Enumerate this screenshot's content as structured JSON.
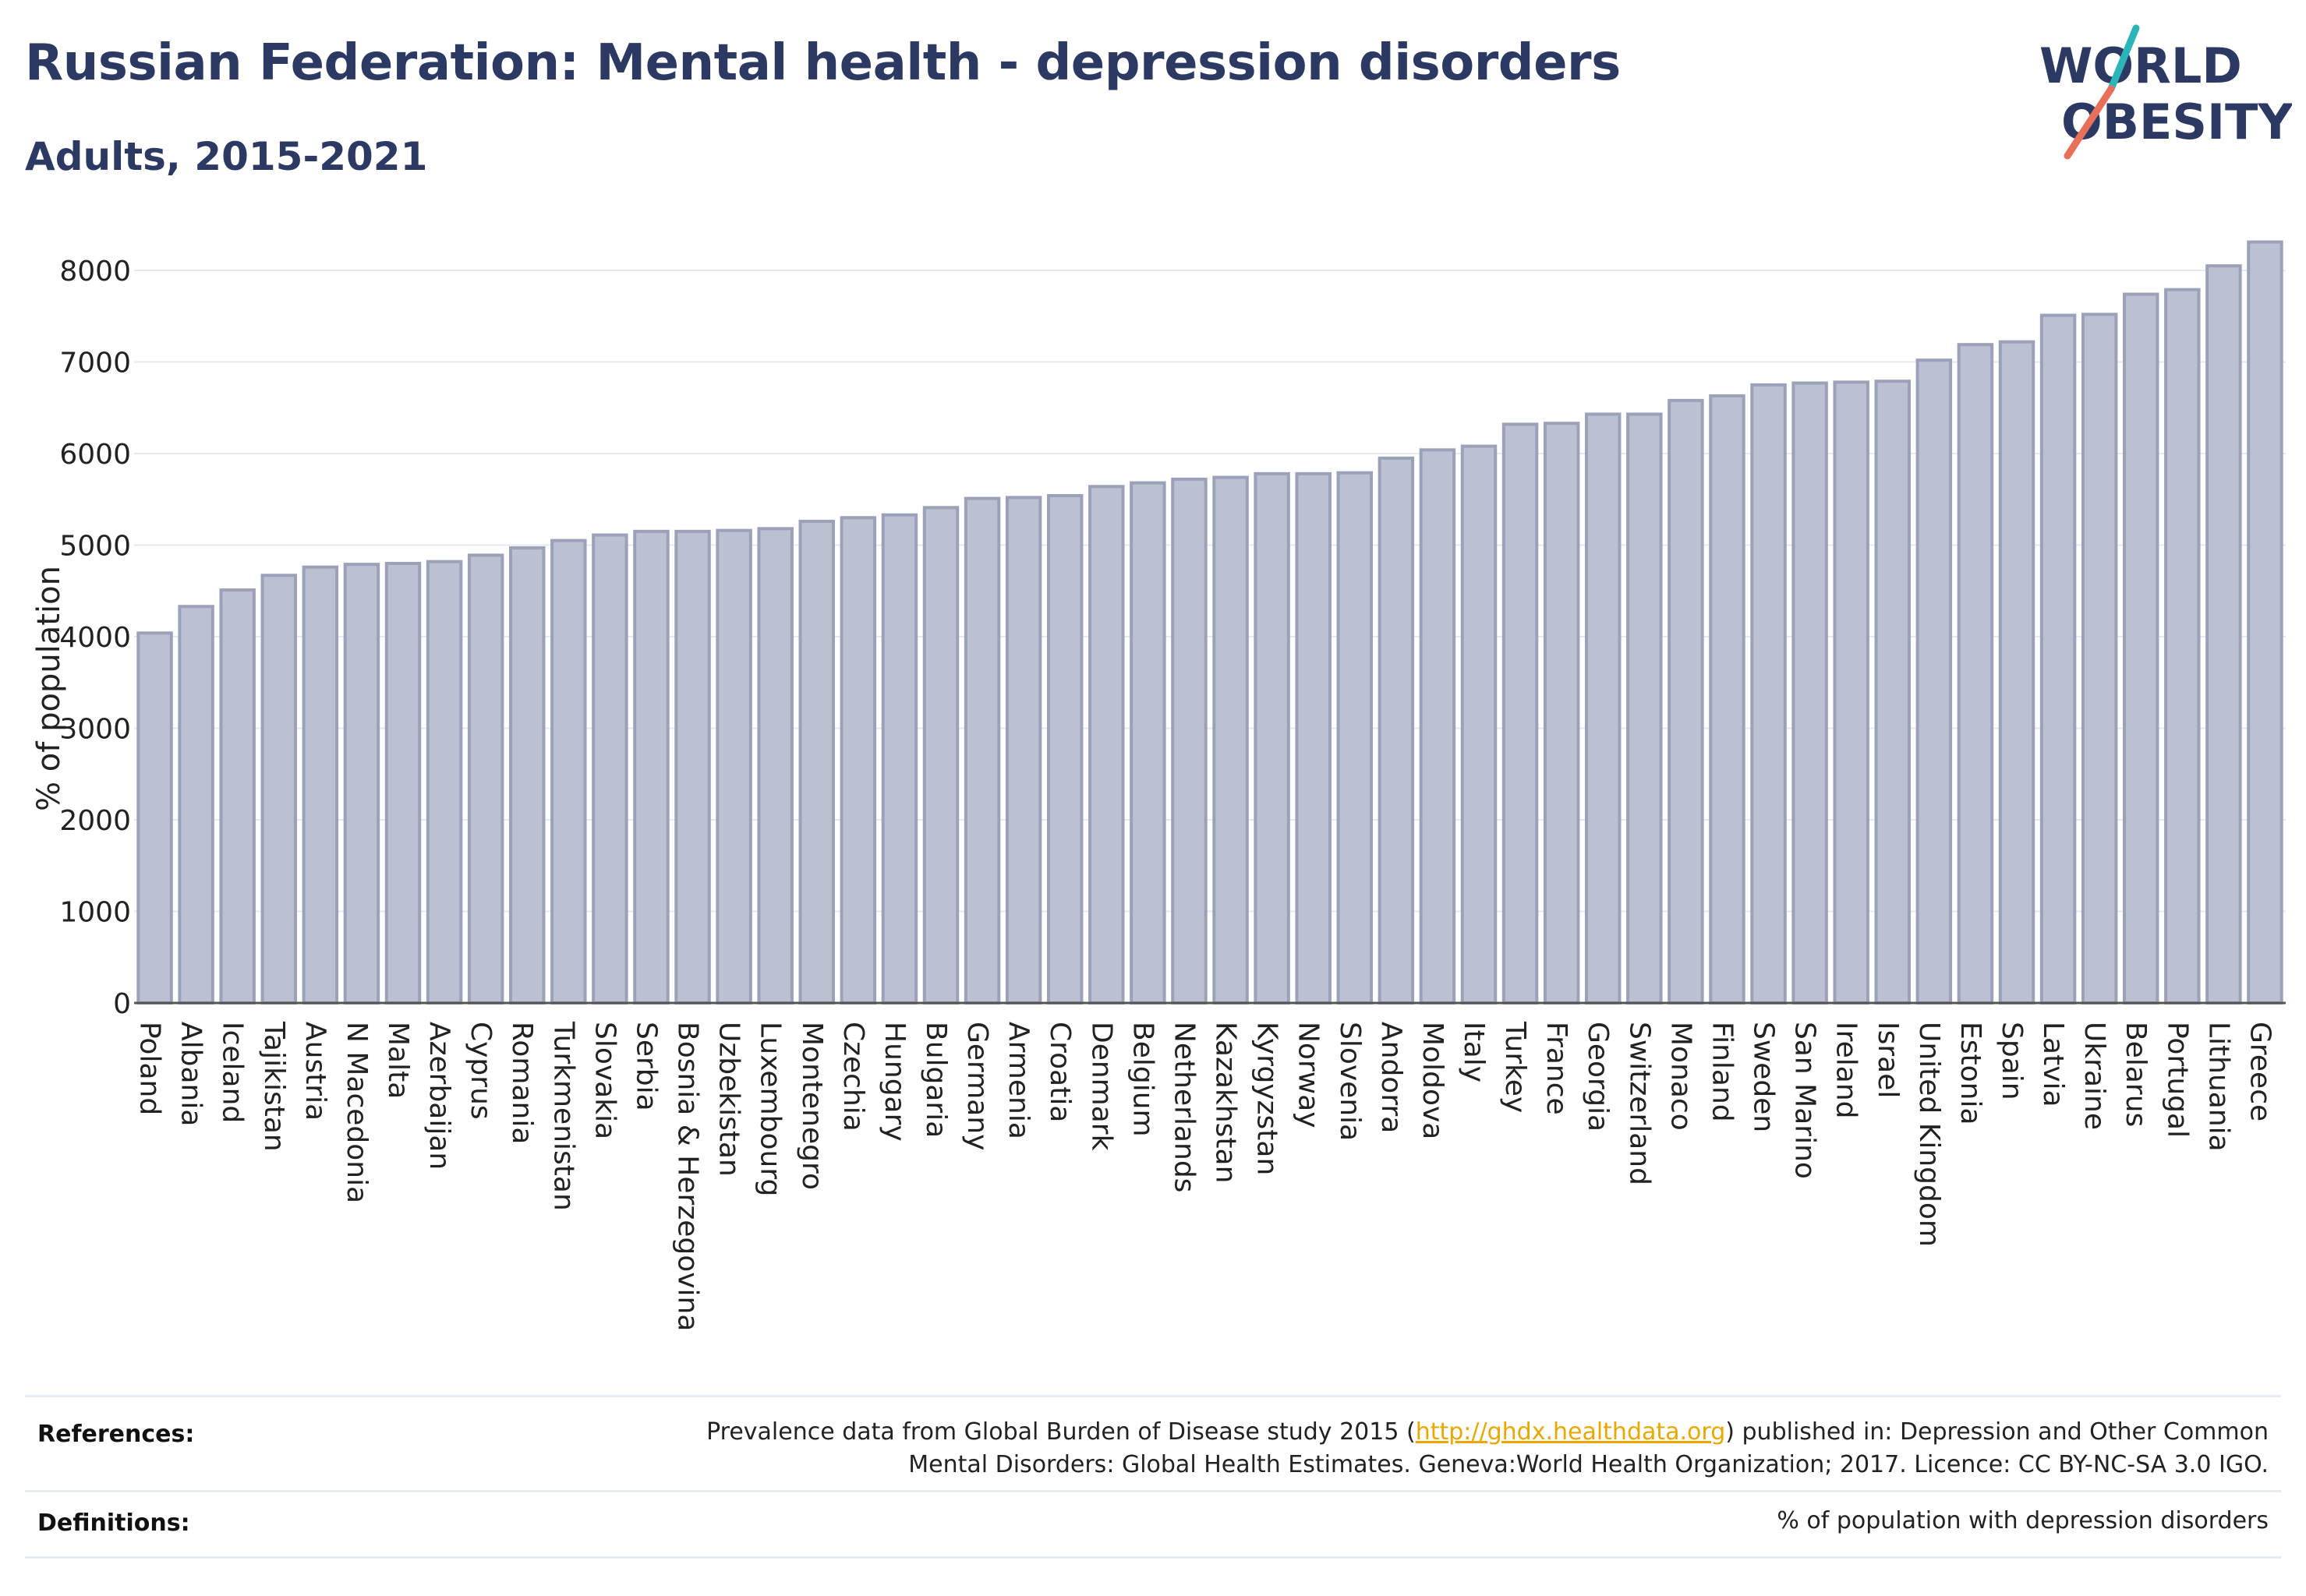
{
  "header": {
    "title": "Russian Federation: Mental health - depression disorders",
    "subtitle": "Adults, 2015-2021"
  },
  "logo": {
    "line1": "WORLD",
    "line2": "OBESITY",
    "colors": {
      "text": "#2c3a63",
      "slash_top": "#2bb5b8",
      "slash_bottom": "#e8705a"
    }
  },
  "colors": {
    "bar_fill": "#bcc1d1",
    "bar_stroke": "#9aa1b8",
    "grid": "#e6e9f0",
    "title": "#2c3a63"
  },
  "chart_data": {
    "type": "bar",
    "title": "Russian Federation: Mental health - depression disorders",
    "subtitle": "Adults, 2015-2021",
    "xlabel": "",
    "ylabel": "% of population",
    "ylim": [
      0,
      8400
    ],
    "yticks": [
      0,
      1000,
      2000,
      3000,
      4000,
      5000,
      6000,
      7000,
      8000
    ],
    "grid": true,
    "categories": [
      "Poland",
      "Albania",
      "Iceland",
      "Tajikistan",
      "Austria",
      "N Macedonia",
      "Malta",
      "Azerbaijan",
      "Cyprus",
      "Romania",
      "Turkmenistan",
      "Slovakia",
      "Serbia",
      "Bosnia & Herzegovina",
      "Uzbekistan",
      "Luxembourg",
      "Montenegro",
      "Czechia",
      "Hungary",
      "Bulgaria",
      "Germany",
      "Armenia",
      "Croatia",
      "Denmark",
      "Belgium",
      "Netherlands",
      "Kazakhstan",
      "Kyrgyzstan",
      "Norway",
      "Slovenia",
      "Andorra",
      "Moldova",
      "Italy",
      "Turkey",
      "France",
      "Georgia",
      "Switzerland",
      "Monaco",
      "Finland",
      "Sweden",
      "San Marino",
      "Ireland",
      "Israel",
      "United Kingdom",
      "Estonia",
      "Spain",
      "Latvia",
      "Ukraine",
      "Belarus",
      "Portugal",
      "Lithuania",
      "Greece"
    ],
    "values": [
      4040,
      4330,
      4510,
      4670,
      4760,
      4790,
      4800,
      4820,
      4890,
      4970,
      5050,
      5110,
      5150,
      5150,
      5160,
      5180,
      5260,
      5300,
      5330,
      5410,
      5510,
      5520,
      5540,
      5640,
      5680,
      5720,
      5740,
      5780,
      5780,
      5790,
      5950,
      6040,
      6080,
      6320,
      6330,
      6430,
      6430,
      6580,
      6630,
      6750,
      6770,
      6780,
      6790,
      7020,
      7190,
      7220,
      7510,
      7520,
      7740,
      7790,
      8050,
      8310
    ]
  },
  "footer": {
    "references_label": "References:",
    "references_pre": "Prevalence data from Global Burden of Disease study 2015 (",
    "references_link": "http://ghdx.healthdata.org",
    "references_post": ") published in: Depression and Other Common",
    "references_line2": "Mental Disorders: Global Health Estimates. Geneva:World Health Organization; 2017. Licence: CC BY-NC-SA 3.0 IGO.",
    "definitions_label": "Definitions:",
    "definitions_text": "% of population with depression disorders"
  }
}
